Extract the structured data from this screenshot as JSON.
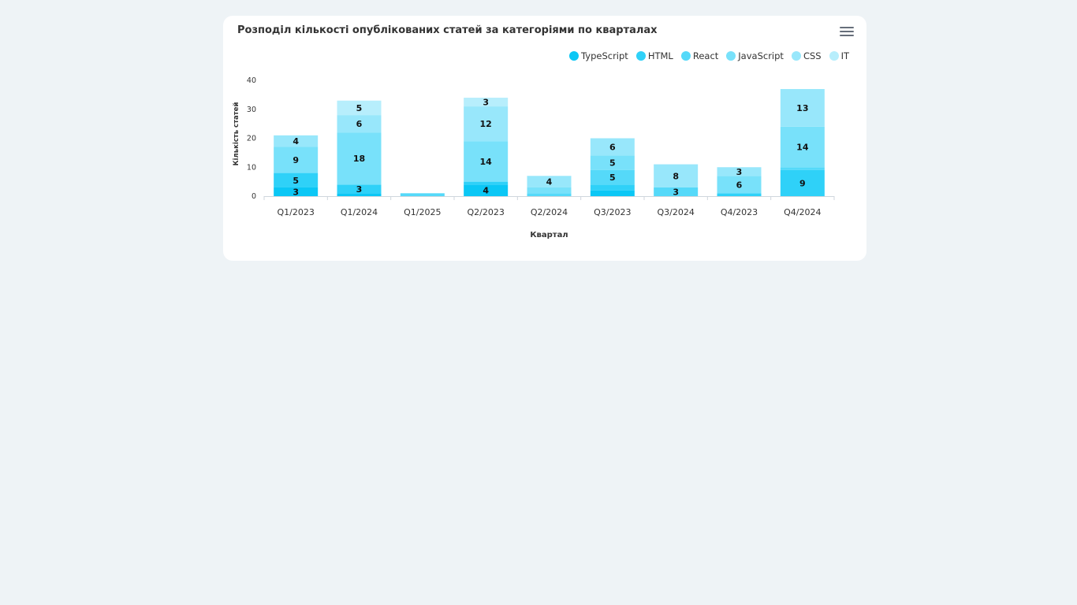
{
  "title": "Розподіл кількості опублікованих статей за категоріями по кварталах",
  "menu_icon": "hamburger-menu-icon",
  "chart_data": {
    "type": "bar",
    "stacked": true,
    "title": "Розподіл кількості опублікованих статей за категоріями по кварталах",
    "xlabel": "Квартал",
    "ylabel": "Кількість статей",
    "ylim": [
      0,
      40
    ],
    "yticks": [
      "0",
      "10",
      "20",
      "30",
      "40"
    ],
    "legend_position": "top-right",
    "categories": [
      "Q1/2023",
      "Q1/2024",
      "Q1/2025",
      "Q2/2023",
      "Q2/2024",
      "Q3/2023",
      "Q3/2024",
      "Q4/2023",
      "Q4/2024"
    ],
    "series": [
      {
        "name": "TypeScript",
        "color": "#0bc7f5",
        "values": [
          3,
          1,
          0,
          4,
          0,
          2,
          0,
          0,
          0
        ]
      },
      {
        "name": "HTML",
        "color": "#2fd1f8",
        "values": [
          5,
          3,
          0,
          1,
          0,
          2,
          0,
          1,
          9
        ]
      },
      {
        "name": "React",
        "color": "#55d9f9",
        "values": [
          0,
          0,
          1,
          0,
          1,
          5,
          3,
          0,
          1
        ]
      },
      {
        "name": "JavaScript",
        "color": "#78e1fa",
        "values": [
          9,
          18,
          0,
          14,
          2,
          5,
          0,
          6,
          14
        ]
      },
      {
        "name": "CSS",
        "color": "#98e7fb",
        "values": [
          4,
          6,
          0,
          12,
          4,
          6,
          8,
          3,
          13
        ]
      },
      {
        "name": "IT",
        "color": "#b7eefc",
        "values": [
          0,
          5,
          0,
          3,
          0,
          0,
          0,
          0,
          0
        ]
      }
    ],
    "data_labels": true
  }
}
